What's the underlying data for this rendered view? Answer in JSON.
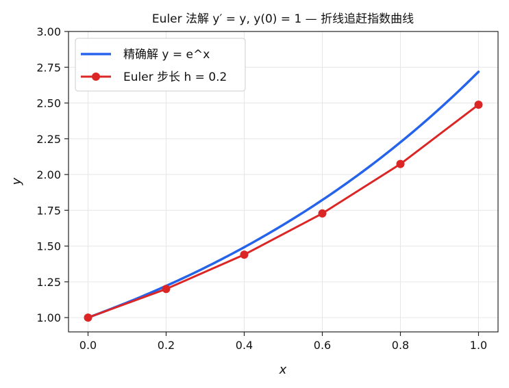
{
  "chart_data": {
    "type": "line",
    "title": "Euler 法解 y′ = y, y(0) = 1 — 折线追赶指数曲线",
    "xlabel": "x",
    "ylabel": "y",
    "xlim": [
      -0.05,
      1.05
    ],
    "ylim": [
      0.9,
      3.0
    ],
    "x_ticks": [
      0.0,
      0.2,
      0.4,
      0.6,
      0.8,
      1.0
    ],
    "x_tick_labels": [
      "0.0",
      "0.2",
      "0.4",
      "0.6",
      "0.8",
      "1.0"
    ],
    "y_ticks": [
      1.0,
      1.25,
      1.5,
      1.75,
      2.0,
      2.25,
      2.5,
      2.75,
      3.0
    ],
    "y_tick_labels": [
      "1.00",
      "1.25",
      "1.50",
      "1.75",
      "2.00",
      "2.25",
      "2.50",
      "2.75",
      "3.00"
    ],
    "grid": true,
    "legend_position": "top-left",
    "series": [
      {
        "name": "精确解 y = e^x",
        "kind": "line",
        "color": "#2563eb",
        "function": "exp",
        "x_range": [
          0.0,
          1.0
        ],
        "x": [
          0.0,
          0.2,
          0.4,
          0.6,
          0.8,
          1.0
        ],
        "y": [
          1.0,
          1.2214,
          1.4918,
          1.8221,
          2.2255,
          2.7183
        ]
      },
      {
        "name": "Euler 步长 h = 0.2",
        "kind": "line-markers",
        "color": "#dc2626",
        "x": [
          0.0,
          0.2,
          0.4,
          0.6,
          0.8,
          1.0
        ],
        "y": [
          1.0,
          1.2,
          1.44,
          1.728,
          2.0736,
          2.48832
        ]
      }
    ]
  }
}
